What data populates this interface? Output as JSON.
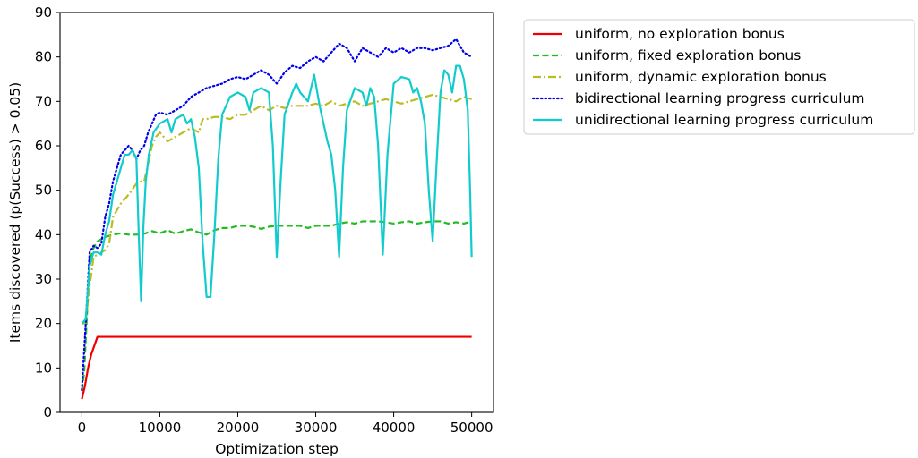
{
  "chart_data": {
    "type": "line",
    "xlabel": "Optimization step",
    "ylabel": "Items discovered (p(Success) > 0.05)",
    "xlim": [
      -2800,
      52800
    ],
    "ylim": [
      0,
      90
    ],
    "xticks": [
      0,
      10000,
      20000,
      30000,
      40000,
      50000
    ],
    "xtick_labels": [
      "0",
      "10000",
      "20000",
      "30000",
      "40000",
      "50000"
    ],
    "yticks": [
      0,
      10,
      20,
      30,
      40,
      50,
      60,
      70,
      80,
      90
    ],
    "ytick_labels": [
      "0",
      "10",
      "20",
      "30",
      "40",
      "50",
      "60",
      "70",
      "80",
      "90"
    ],
    "grid": false,
    "legend_position": "outside-right-top",
    "series": [
      {
        "name": "uniform,  no exploration bonus",
        "color": "#ee0000",
        "dash": "solid",
        "points": [
          [
            0,
            3
          ],
          [
            400,
            6
          ],
          [
            800,
            10
          ],
          [
            1200,
            13
          ],
          [
            1600,
            15
          ],
          [
            2000,
            17
          ],
          [
            50000,
            17
          ]
        ]
      },
      {
        "name": "uniform,  fixed exploration bonus",
        "color": "#22bb22",
        "dash": "dashed",
        "points": [
          [
            0,
            5
          ],
          [
            300,
            9
          ],
          [
            600,
            20
          ],
          [
            1000,
            34
          ],
          [
            1500,
            37
          ],
          [
            2000,
            38.5
          ],
          [
            3000,
            39.5
          ],
          [
            4000,
            40
          ],
          [
            5000,
            40.3
          ],
          [
            6000,
            40
          ],
          [
            7000,
            40
          ],
          [
            8000,
            40.2
          ],
          [
            9000,
            40.8
          ],
          [
            10000,
            40.3
          ],
          [
            11000,
            41
          ],
          [
            12000,
            40.2
          ],
          [
            13000,
            40.8
          ],
          [
            14000,
            41.2
          ],
          [
            15000,
            40.5
          ],
          [
            16000,
            40
          ],
          [
            17000,
            41
          ],
          [
            18000,
            41.5
          ],
          [
            19000,
            41.5
          ],
          [
            20000,
            42
          ],
          [
            21000,
            42
          ],
          [
            22000,
            41.8
          ],
          [
            23000,
            41.3
          ],
          [
            24000,
            41.8
          ],
          [
            25000,
            42
          ],
          [
            26000,
            42
          ],
          [
            27000,
            42
          ],
          [
            28000,
            42
          ],
          [
            29000,
            41.5
          ],
          [
            30000,
            42
          ],
          [
            31000,
            42
          ],
          [
            32000,
            42
          ],
          [
            33000,
            42.5
          ],
          [
            34000,
            42.8
          ],
          [
            35000,
            42.5
          ],
          [
            36000,
            43
          ],
          [
            37000,
            43
          ],
          [
            38000,
            43
          ],
          [
            39000,
            42.8
          ],
          [
            40000,
            42.5
          ],
          [
            41000,
            42.8
          ],
          [
            42000,
            43
          ],
          [
            43000,
            42.5
          ],
          [
            44000,
            42.8
          ],
          [
            45000,
            43
          ],
          [
            46000,
            43
          ],
          [
            47000,
            42.5
          ],
          [
            48000,
            42.8
          ],
          [
            49000,
            42.5
          ],
          [
            50000,
            43
          ]
        ]
      },
      {
        "name": "uniform,  dynamic exploration bonus",
        "color": "#bbbb22",
        "dash": "dashdot",
        "points": [
          [
            0,
            20
          ],
          [
            300,
            20
          ],
          [
            600,
            22
          ],
          [
            900,
            27
          ],
          [
            1200,
            31
          ],
          [
            1500,
            35
          ],
          [
            2000,
            35.5
          ],
          [
            3000,
            36.5
          ],
          [
            3500,
            38
          ],
          [
            4000,
            44
          ],
          [
            5000,
            47
          ],
          [
            6000,
            49
          ],
          [
            7000,
            51.5
          ],
          [
            7600,
            52
          ],
          [
            8000,
            52
          ],
          [
            8500,
            56
          ],
          [
            9000,
            60
          ],
          [
            9500,
            62
          ],
          [
            10000,
            63
          ],
          [
            11000,
            61
          ],
          [
            12000,
            62
          ],
          [
            13000,
            63
          ],
          [
            14000,
            64
          ],
          [
            15000,
            63
          ],
          [
            15500,
            66
          ],
          [
            16000,
            66
          ],
          [
            17000,
            66.5
          ],
          [
            18000,
            66.5
          ],
          [
            19000,
            66
          ],
          [
            20000,
            67
          ],
          [
            21000,
            67
          ],
          [
            22000,
            68
          ],
          [
            23000,
            69
          ],
          [
            24000,
            68
          ],
          [
            25000,
            69
          ],
          [
            26000,
            68.5
          ],
          [
            27000,
            69
          ],
          [
            28000,
            69
          ],
          [
            29000,
            69
          ],
          [
            30000,
            69.5
          ],
          [
            31000,
            69
          ],
          [
            32000,
            70
          ],
          [
            33000,
            69
          ],
          [
            34000,
            69.5
          ],
          [
            35000,
            70
          ],
          [
            36000,
            69
          ],
          [
            37000,
            69.5
          ],
          [
            38000,
            70
          ],
          [
            39000,
            70.5
          ],
          [
            40000,
            70
          ],
          [
            41000,
            69.5
          ],
          [
            42000,
            70
          ],
          [
            43000,
            70.5
          ],
          [
            44000,
            71
          ],
          [
            45000,
            71.5
          ],
          [
            46000,
            71
          ],
          [
            47000,
            70.5
          ],
          [
            48000,
            70
          ],
          [
            49000,
            71
          ],
          [
            50000,
            70.5
          ]
        ]
      },
      {
        "name": "bidirectional learning progress curriculum",
        "color": "#0000ee",
        "dash": "dotted",
        "points": [
          [
            0,
            5
          ],
          [
            500,
            20
          ],
          [
            1000,
            36
          ],
          [
            1500,
            37.5
          ],
          [
            2000,
            37
          ],
          [
            2500,
            38
          ],
          [
            3000,
            44
          ],
          [
            3500,
            47
          ],
          [
            4000,
            52
          ],
          [
            4500,
            55
          ],
          [
            5000,
            58
          ],
          [
            5500,
            59
          ],
          [
            6000,
            60
          ],
          [
            6500,
            59
          ],
          [
            7000,
            57
          ],
          [
            7500,
            59
          ],
          [
            8000,
            60
          ],
          [
            8500,
            63
          ],
          [
            9000,
            65
          ],
          [
            9500,
            67
          ],
          [
            10000,
            67.5
          ],
          [
            11000,
            67
          ],
          [
            12000,
            68
          ],
          [
            13000,
            69
          ],
          [
            14000,
            71
          ],
          [
            15000,
            72
          ],
          [
            16000,
            73
          ],
          [
            17000,
            73.5
          ],
          [
            18000,
            74
          ],
          [
            19000,
            75
          ],
          [
            20000,
            75.5
          ],
          [
            21000,
            75
          ],
          [
            22000,
            76
          ],
          [
            23000,
            77
          ],
          [
            24000,
            76
          ],
          [
            25000,
            74
          ],
          [
            26000,
            76.5
          ],
          [
            27000,
            78
          ],
          [
            28000,
            77.5
          ],
          [
            29000,
            79
          ],
          [
            30000,
            80
          ],
          [
            31000,
            79
          ],
          [
            32000,
            81
          ],
          [
            33000,
            83
          ],
          [
            34000,
            82
          ],
          [
            35000,
            79
          ],
          [
            36000,
            82
          ],
          [
            37000,
            81
          ],
          [
            38000,
            80
          ],
          [
            39000,
            82
          ],
          [
            40000,
            81
          ],
          [
            41000,
            82
          ],
          [
            42000,
            81
          ],
          [
            43000,
            82
          ],
          [
            44000,
            82
          ],
          [
            45000,
            81.5
          ],
          [
            46000,
            82
          ],
          [
            47000,
            82.5
          ],
          [
            48000,
            84
          ],
          [
            49000,
            81
          ],
          [
            50000,
            80
          ]
        ]
      },
      {
        "name": "unidirectional learning progress curriculum",
        "color": "#11cccc",
        "dash": "solid",
        "points": [
          [
            0,
            20
          ],
          [
            500,
            21
          ],
          [
            1000,
            33
          ],
          [
            1500,
            36
          ],
          [
            2000,
            36
          ],
          [
            2500,
            35.5
          ],
          [
            3000,
            40
          ],
          [
            3500,
            43
          ],
          [
            4000,
            49
          ],
          [
            4500,
            52
          ],
          [
            5000,
            55
          ],
          [
            5500,
            58
          ],
          [
            6000,
            58
          ],
          [
            6500,
            59
          ],
          [
            7000,
            57
          ],
          [
            7300,
            40
          ],
          [
            7600,
            25
          ],
          [
            7900,
            42
          ],
          [
            8200,
            52
          ],
          [
            8600,
            58
          ],
          [
            9200,
            63
          ],
          [
            10000,
            65
          ],
          [
            11000,
            66
          ],
          [
            11500,
            63
          ],
          [
            12000,
            66
          ],
          [
            13000,
            67
          ],
          [
            13500,
            65
          ],
          [
            14000,
            66
          ],
          [
            14500,
            62
          ],
          [
            15000,
            55
          ],
          [
            15500,
            38
          ],
          [
            16000,
            26
          ],
          [
            16500,
            26
          ],
          [
            17000,
            40
          ],
          [
            17500,
            57
          ],
          [
            18000,
            67
          ],
          [
            19000,
            71
          ],
          [
            20000,
            72
          ],
          [
            21000,
            71
          ],
          [
            21500,
            68
          ],
          [
            22000,
            72
          ],
          [
            23000,
            73
          ],
          [
            24000,
            72
          ],
          [
            24500,
            60
          ],
          [
            25000,
            35
          ],
          [
            25500,
            52
          ],
          [
            26000,
            67
          ],
          [
            27000,
            72
          ],
          [
            27500,
            74
          ],
          [
            28000,
            72
          ],
          [
            29000,
            70
          ],
          [
            29800,
            76
          ],
          [
            30500,
            69
          ],
          [
            31000,
            65
          ],
          [
            31500,
            61
          ],
          [
            32000,
            58
          ],
          [
            32500,
            50
          ],
          [
            33000,
            35
          ],
          [
            33500,
            55
          ],
          [
            34000,
            68
          ],
          [
            35000,
            73
          ],
          [
            36000,
            72
          ],
          [
            36500,
            69
          ],
          [
            37000,
            73
          ],
          [
            37500,
            71
          ],
          [
            38000,
            60
          ],
          [
            38600,
            35.5
          ],
          [
            39200,
            58
          ],
          [
            40000,
            74
          ],
          [
            41000,
            75.5
          ],
          [
            42000,
            75
          ],
          [
            42500,
            72
          ],
          [
            43000,
            73
          ],
          [
            43500,
            70
          ],
          [
            44000,
            65
          ],
          [
            44500,
            50
          ],
          [
            45000,
            38.5
          ],
          [
            45500,
            56
          ],
          [
            46000,
            72
          ],
          [
            46500,
            77
          ],
          [
            47000,
            76
          ],
          [
            47500,
            72
          ],
          [
            48000,
            78
          ],
          [
            48500,
            78
          ],
          [
            49000,
            75
          ],
          [
            49500,
            68
          ],
          [
            49800,
            50
          ],
          [
            50000,
            35
          ]
        ]
      }
    ]
  }
}
